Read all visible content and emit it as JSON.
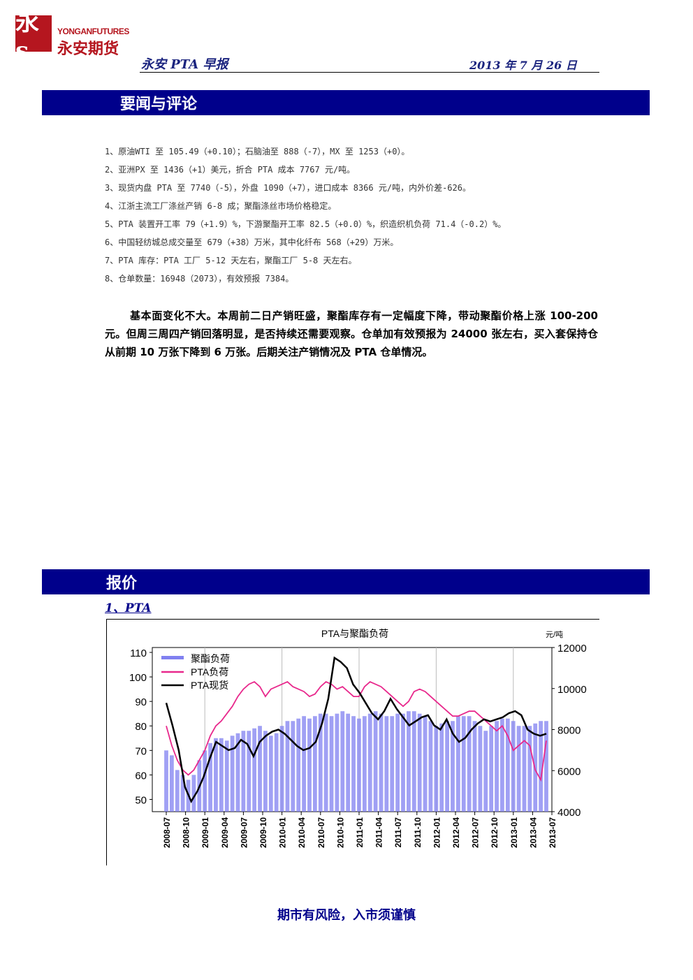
{
  "header": {
    "logo_mark": "永s",
    "logo_en": "YONGANFUTURES",
    "logo_cn": "永安期货",
    "report_title": "永安 PTA 早报",
    "date": "2013 年 7 月 26 日"
  },
  "sections": {
    "news_title": "要闻与评论",
    "quote_title": "报价"
  },
  "news": [
    "1、原油WTI 至 105.49（+0.10）；石脑油至 888（-7），MX 至 1253（+0）。",
    "2、亚洲PX 至 1436（+1）美元，折合 PTA 成本 7767 元/吨。",
    "3、现货内盘 PTA 至 7740（-5），外盘 1090（+7），进口成本 8366 元/吨，内外价差-626。",
    "4、江浙主流工厂涤丝产销 6-8 成；聚酯涤丝市场价格稳定。",
    "5、PTA 装置开工率 79（+1.9）%，下游聚酯开工率 82.5（+0.0）%，织造织机负荷 71.4（-0.2）%。",
    "6、中国轻纺城总成交量至 679（+38）万米，其中化纤布 568（+29）万米。",
    "7、PTA 库存：PTA 工厂 5-12 天左右，聚酯工厂 5-8 天左右。",
    "8、仓单数量：16948（2073），有效预报 7384。"
  ],
  "commentary": "基本面变化不大。本周前二日产销旺盛，聚酯库存有一定幅度下降，带动聚酯价格上涨 100-200 元。但周三周四产销回落明显，是否持续还需要观察。仓单加有效预报为 24000 张左右，买入套保持仓从前期 10 万张下降到 6 万张。后期关注产销情况及 PTA 仓单情况。",
  "subsection": "1、PTA",
  "footer": "期市有风险，入市须谨慎",
  "chart_data": {
    "type": "line",
    "title": "PTA与聚酯负荷",
    "y2_unit": "元/吨",
    "ylim": [
      45,
      112
    ],
    "y2lim": [
      4000,
      12000
    ],
    "yticks": [
      50,
      60,
      70,
      80,
      90,
      100,
      110
    ],
    "y2ticks": [
      4000,
      6000,
      8000,
      10000,
      12000
    ],
    "x_ticks": [
      "2008-07",
      "2008-10",
      "2009-01",
      "2009-04",
      "2009-07",
      "2009-10",
      "2010-01",
      "2010-04",
      "2010-07",
      "2010-10",
      "2011-01",
      "2011-04",
      "2011-07",
      "2011-10",
      "2012-01",
      "2012-04",
      "2012-07",
      "2012-10",
      "2013-01",
      "2013-04",
      "2013-07"
    ],
    "grid": "vertical at each January",
    "legend": "top-left",
    "series": [
      {
        "name": "聚酯负荷",
        "axis": "left",
        "style": "bars",
        "color": "#8080f0",
        "values": [
          70,
          68,
          62,
          60,
          58,
          60,
          66,
          70,
          73,
          75,
          75,
          74,
          76,
          77,
          78,
          78,
          79,
          80,
          78,
          76,
          77,
          80,
          82,
          82,
          83,
          84,
          83,
          84,
          85,
          85,
          84,
          85,
          86,
          85,
          84,
          83,
          84,
          85,
          86,
          85,
          84,
          84,
          85,
          85,
          86,
          86,
          85,
          84,
          82,
          80,
          81,
          82,
          82,
          84,
          84,
          84,
          82,
          80,
          78,
          80,
          82,
          83,
          83,
          82,
          80,
          80,
          80,
          81,
          82,
          82
        ]
      },
      {
        "name": "PTA负荷",
        "axis": "left",
        "style": "line",
        "color": "#e8288c",
        "values": [
          80,
          72,
          66,
          62,
          60,
          62,
          66,
          70,
          76,
          80,
          82,
          85,
          88,
          92,
          95,
          97,
          98,
          96,
          92,
          95,
          96,
          97,
          98,
          96,
          95,
          94,
          92,
          93,
          96,
          98,
          97,
          95,
          96,
          94,
          92,
          92,
          96,
          98,
          97,
          96,
          94,
          92,
          90,
          88,
          90,
          94,
          95,
          94,
          92,
          90,
          88,
          86,
          84,
          84,
          85,
          86,
          86,
          84,
          82,
          80,
          78,
          80,
          76,
          70,
          72,
          74,
          72,
          62,
          58,
          74
        ]
      },
      {
        "name": "PTA现货",
        "axis": "right",
        "style": "line",
        "color": "#000000",
        "values": [
          9300,
          8200,
          7000,
          5200,
          4500,
          5000,
          5700,
          6600,
          7400,
          7200,
          7000,
          7100,
          7500,
          7300,
          6700,
          7400,
          7700,
          7900,
          8000,
          7800,
          7500,
          7200,
          7000,
          7100,
          7400,
          8300,
          9500,
          11500,
          11300,
          11000,
          10200,
          9800,
          9300,
          8800,
          8500,
          8900,
          9500,
          9000,
          8600,
          8200,
          8400,
          8600,
          8700,
          8200,
          8000,
          8500,
          7800,
          7400,
          7600,
          8000,
          8300,
          8500,
          8400,
          8500,
          8600,
          8800,
          8900,
          8700,
          8000,
          7800,
          7700,
          7800
        ]
      }
    ]
  }
}
